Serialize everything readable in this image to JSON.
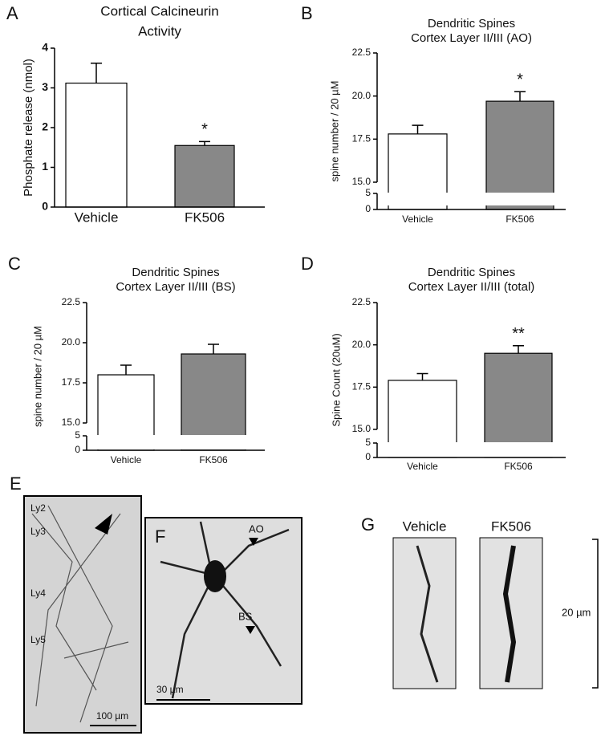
{
  "chart_data": [
    {
      "type": "bar",
      "panel": "A",
      "title": [
        "Cortical Calcineurin",
        "Activity"
      ],
      "ylabel": "Phosphate release (nmol)",
      "categories": [
        "Vehicle",
        "FK506"
      ],
      "values": [
        3.12,
        1.55
      ],
      "errors": [
        0.5,
        0.1
      ],
      "colors": [
        "#ffffff",
        "#888888"
      ],
      "ylim": [
        0,
        4
      ],
      "yticks": [
        0,
        1,
        2,
        3,
        4
      ],
      "annotations": [
        {
          "x": "FK506",
          "text": "*"
        }
      ]
    },
    {
      "type": "bar",
      "panel": "B",
      "title": [
        "Dendritic Spines",
        "Cortex Layer II/III (AO)"
      ],
      "ylabel": "spine number / 20 µM",
      "categories": [
        "Vehicle",
        "FK506"
      ],
      "values": [
        17.8,
        19.7
      ],
      "errors": [
        0.5,
        0.55
      ],
      "colors": [
        "#ffffff",
        "#888888"
      ],
      "ylim": [
        0,
        22.5
      ],
      "ybreak": [
        5,
        15
      ],
      "yticks": [
        0,
        5,
        {
          "value": 15,
          "label": "15.0"
        },
        17.5,
        {
          "value": 20,
          "label": "20.0"
        },
        22.5
      ],
      "annotations": [
        {
          "x": "FK506",
          "text": "*"
        }
      ]
    },
    {
      "type": "bar",
      "panel": "C",
      "title": [
        "Dendritic Spines",
        "Cortex Layer II/III (BS)"
      ],
      "ylabel": "spine number / 20 µM",
      "categories": [
        "Vehicle",
        "FK506"
      ],
      "values": [
        18.0,
        19.3
      ],
      "errors": [
        0.6,
        0.6
      ],
      "colors": [
        "#ffffff",
        "#888888"
      ],
      "ylim": [
        0,
        22.5
      ],
      "ybreak": [
        5,
        15
      ],
      "yticks": [
        0,
        5,
        {
          "value": 15,
          "label": "15.0"
        },
        17.5,
        {
          "value": 20,
          "label": "20.0"
        },
        22.5
      ]
    },
    {
      "type": "bar",
      "panel": "D",
      "title": [
        "Dendritic Spines",
        "Cortex Layer II/III (total)"
      ],
      "ylabel": "Spine Count (20uM)",
      "categories": [
        "Vehicle",
        "FK506"
      ],
      "values": [
        17.9,
        19.5
      ],
      "errors": [
        0.4,
        0.45
      ],
      "colors": [
        "#ffffff",
        "#888888"
      ],
      "ylim": [
        0,
        22.5
      ],
      "ybreak": [
        5,
        15
      ],
      "yticks": [
        0,
        5,
        {
          "value": 15,
          "label": "15.0"
        },
        17.5,
        {
          "value": 20,
          "label": "20.0"
        },
        22.5
      ],
      "annotations": [
        {
          "x": "FK506",
          "text": "**"
        }
      ]
    }
  ],
  "images": {
    "e": {
      "panel": "E",
      "labels": [
        "Ly2",
        "Ly3",
        "Ly4",
        "Ly5"
      ],
      "scale": "100 µm"
    },
    "f": {
      "panel": "F",
      "labels": [
        "AO",
        "BS"
      ],
      "scale": "30 µm"
    },
    "g": {
      "panel": "G",
      "labels": [
        "Vehicle",
        "FK506"
      ],
      "scale": "20 µm"
    }
  }
}
